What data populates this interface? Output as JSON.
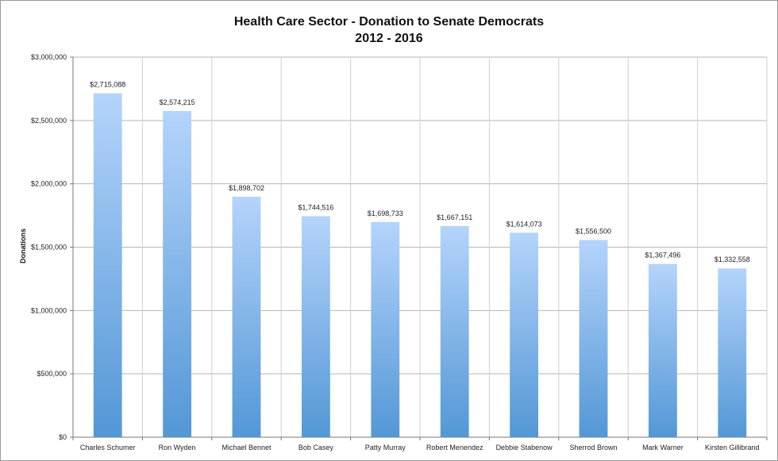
{
  "chart_data": {
    "type": "bar",
    "title_line1": "Health Care Sector - Donation to Senate Democrats",
    "title_line2": "2012 - 2016",
    "xlabel": "",
    "ylabel": "Donations",
    "ylim": [
      0,
      3000000
    ],
    "yticks": [
      0,
      500000,
      1000000,
      1500000,
      2000000,
      2500000,
      3000000
    ],
    "ytick_labels": [
      "$0",
      "$500,000",
      "$1,000,000",
      "$1,500,000",
      "$2,000,000",
      "$2,500,000",
      "$3,000,000"
    ],
    "grid": true,
    "legend": "none",
    "bar_color_top": "#b4d4fb",
    "bar_color_bottom": "#5397d6",
    "categories": [
      "Charles Schumer",
      "Ron Wyden",
      "Michael Bennet",
      "Bob Casey",
      "Patty Murray",
      "Robert Menendez",
      "Debbie Stabenow",
      "Sherrod Brown",
      "Mark Warner",
      "Kirsten Gillibrand"
    ],
    "values": [
      2715088,
      2574215,
      1898702,
      1744516,
      1698733,
      1667151,
      1614073,
      1556500,
      1367496,
      1332558
    ],
    "data_labels": [
      "$2,715,088",
      "$2,574,215",
      "$1,898,702",
      "$1,744,516",
      "$1,698,733",
      "$1,667,151",
      "$1,614,073",
      "$1,556,500",
      "$1,367,496",
      "$1,332,558"
    ]
  }
}
